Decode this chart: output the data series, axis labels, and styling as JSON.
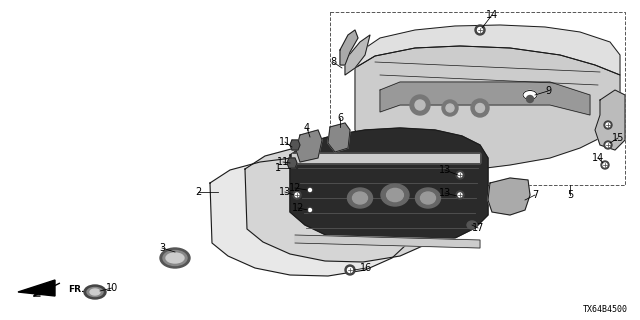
{
  "bg_color": "#ffffff",
  "diagram_code": "TX64B4500",
  "line_color": "#1a1a1a",
  "gray_fill": "#d8d8d8",
  "dark_fill": "#888888",
  "mid_fill": "#bbbbbb",
  "font_size": 7,
  "font_size_code": 6
}
